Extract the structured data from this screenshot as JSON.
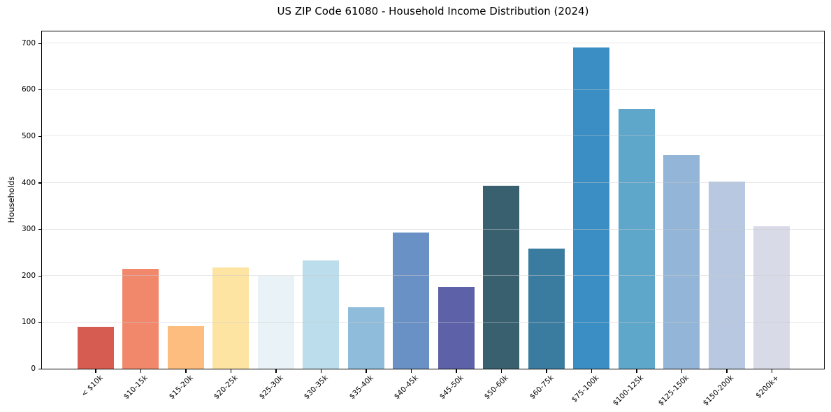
{
  "chart_data": {
    "type": "bar",
    "title": "US ZIP Code 61080 - Household Income Distribution (2024)",
    "xlabel": "",
    "ylabel": "Households",
    "ylim": [
      0,
      725
    ],
    "yticks": [
      0,
      100,
      200,
      300,
      400,
      500,
      600,
      700
    ],
    "grid": "horizontal",
    "legend": "none",
    "categories": [
      "< $10k",
      "$10-15k",
      "$15-20k",
      "$20-25k",
      "$25-30k",
      "$30-35k",
      "$35-40k",
      "$40-45k",
      "$45-50k",
      "$50-60k",
      "$60-75k",
      "$75-100k",
      "$100-125k",
      "$125-150k",
      "$150-200k",
      "$200k+"
    ],
    "values": [
      90,
      214,
      92,
      218,
      200,
      232,
      132,
      292,
      175,
      394,
      258,
      690,
      558,
      460,
      402,
      306
    ],
    "bar_colors": [
      "#d65c52",
      "#f1886b",
      "#fcbd7e",
      "#fde4a2",
      "#e9f2f7",
      "#bbddec",
      "#90bcdb",
      "#6991c5",
      "#5c61a8",
      "#38606f",
      "#3a7ba0",
      "#3a8ec3",
      "#5ea6ca",
      "#92b5d8",
      "#b7c8e0",
      "#d8dae8"
    ]
  }
}
